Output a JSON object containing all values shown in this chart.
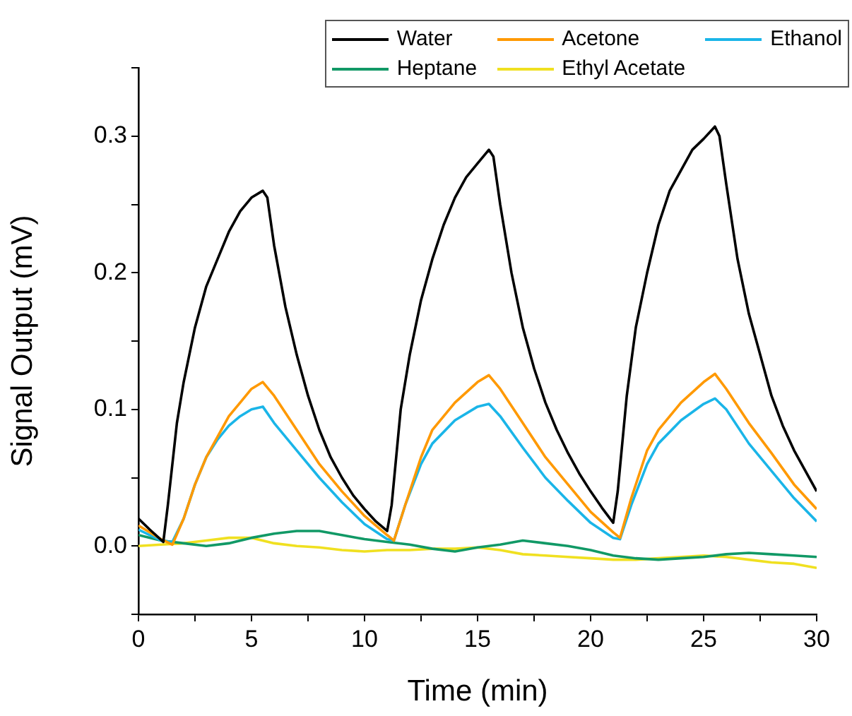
{
  "chart_data": {
    "type": "line",
    "xlabel": "Time (min)",
    "ylabel": "Signal Output (mV)",
    "xlim": [
      0,
      30
    ],
    "ylim": [
      -0.05,
      0.35
    ],
    "xticks": [
      0,
      {
        "value": 2.5,
        "label": null
      },
      5,
      {
        "value": 7.5,
        "label": null
      },
      10,
      {
        "value": 12.5,
        "label": null
      },
      15,
      {
        "value": 17.5,
        "label": null
      },
      20,
      {
        "value": 22.5,
        "label": null
      },
      25,
      {
        "value": 27.5,
        "label": null
      },
      30
    ],
    "yticks": [
      {
        "value": -0.05,
        "label": null
      },
      {
        "value": 0,
        "label": "0.0"
      },
      {
        "value": 0.05,
        "label": null
      },
      {
        "value": 0.1,
        "label": "0.1"
      },
      {
        "value": 0.15,
        "label": null
      },
      {
        "value": 0.2,
        "label": "0.2"
      },
      {
        "value": 0.25,
        "label": null
      },
      {
        "value": 0.3,
        "label": "0.3"
      },
      {
        "value": 0.35,
        "label": null
      }
    ],
    "grid": false,
    "legend": "top right",
    "marker": "none",
    "line_style": "solid",
    "series": [
      {
        "name": "Water",
        "color": "#000000",
        "x": [
          0,
          0.5,
          1.1,
          1.3,
          1.7,
          2,
          2.5,
          3,
          3.5,
          4,
          4.5,
          5,
          5.5,
          5.7,
          6,
          6.5,
          7,
          7.5,
          8,
          8.5,
          9,
          9.5,
          10,
          10.5,
          11,
          11.2,
          11.6,
          12,
          12.5,
          13,
          13.5,
          14,
          14.5,
          15,
          15.5,
          15.7,
          16,
          16.5,
          17,
          17.5,
          18,
          18.5,
          19,
          19.5,
          20,
          20.5,
          21,
          21.2,
          21.6,
          22,
          22.5,
          23,
          23.5,
          24,
          24.5,
          25,
          25.5,
          25.7,
          26,
          26.5,
          27,
          27.5,
          28,
          28.5,
          29,
          29.5,
          30
        ],
        "values": [
          0.02,
          0.012,
          0.003,
          0.03,
          0.09,
          0.12,
          0.16,
          0.19,
          0.21,
          0.23,
          0.245,
          0.255,
          0.26,
          0.255,
          0.22,
          0.175,
          0.14,
          0.11,
          0.085,
          0.065,
          0.05,
          0.037,
          0.027,
          0.018,
          0.011,
          0.03,
          0.1,
          0.14,
          0.18,
          0.21,
          0.235,
          0.255,
          0.27,
          0.28,
          0.29,
          0.285,
          0.25,
          0.2,
          0.16,
          0.13,
          0.105,
          0.085,
          0.068,
          0.053,
          0.04,
          0.028,
          0.017,
          0.04,
          0.11,
          0.16,
          0.2,
          0.235,
          0.26,
          0.275,
          0.29,
          0.298,
          0.307,
          0.3,
          0.265,
          0.21,
          0.17,
          0.14,
          0.11,
          0.088,
          0.07,
          0.055,
          0.04
        ]
      },
      {
        "name": "Acetone",
        "color": "#ff9900",
        "x": [
          0,
          1,
          1.5,
          2,
          2.5,
          3,
          3.5,
          4,
          4.5,
          5,
          5.5,
          6,
          7,
          8,
          9,
          10,
          11,
          11.3,
          11.8,
          12.5,
          13,
          14,
          15,
          15.5,
          16,
          17,
          18,
          19,
          20,
          21,
          21.3,
          21.8,
          22.5,
          23,
          24,
          25,
          25.5,
          26,
          27,
          28,
          29,
          30
        ],
        "values": [
          0.015,
          0.005,
          0.001,
          0.02,
          0.045,
          0.065,
          0.08,
          0.095,
          0.105,
          0.115,
          0.12,
          0.11,
          0.085,
          0.06,
          0.04,
          0.022,
          0.008,
          0.004,
          0.03,
          0.065,
          0.085,
          0.105,
          0.12,
          0.125,
          0.115,
          0.09,
          0.065,
          0.045,
          0.025,
          0.01,
          0.006,
          0.035,
          0.07,
          0.085,
          0.105,
          0.12,
          0.126,
          0.115,
          0.09,
          0.068,
          0.045,
          0.027
        ]
      },
      {
        "name": "Ethanol",
        "color": "#1ab5e8",
        "x": [
          0,
          1,
          1.5,
          2,
          2.5,
          3,
          3.5,
          4,
          4.5,
          5,
          5.5,
          6,
          7,
          8,
          9,
          10,
          11,
          11.3,
          11.8,
          12.5,
          13,
          14,
          15,
          15.5,
          16,
          17,
          18,
          19,
          20,
          21,
          21.3,
          21.8,
          22.5,
          23,
          24,
          25,
          25.5,
          26,
          27,
          28,
          29,
          30
        ],
        "values": [
          0.012,
          0.004,
          0.003,
          0.02,
          0.045,
          0.065,
          0.078,
          0.088,
          0.095,
          0.1,
          0.102,
          0.09,
          0.07,
          0.05,
          0.032,
          0.016,
          0.005,
          0.004,
          0.03,
          0.06,
          0.075,
          0.092,
          0.102,
          0.104,
          0.095,
          0.072,
          0.05,
          0.033,
          0.017,
          0.006,
          0.005,
          0.03,
          0.06,
          0.075,
          0.092,
          0.104,
          0.108,
          0.1,
          0.075,
          0.055,
          0.035,
          0.018
        ]
      },
      {
        "name": "Heptane",
        "color": "#119966",
        "x": [
          0,
          1,
          2,
          3,
          4,
          5,
          6,
          7,
          8,
          9,
          10,
          11,
          12,
          13,
          14,
          15,
          16,
          17,
          18,
          19,
          20,
          21,
          22,
          23,
          24,
          25,
          26,
          27,
          28,
          29,
          30
        ],
        "values": [
          0.008,
          0.004,
          0.002,
          0.0,
          0.002,
          0.006,
          0.009,
          0.011,
          0.011,
          0.008,
          0.005,
          0.003,
          0.001,
          -0.002,
          -0.004,
          -0.001,
          0.001,
          0.004,
          0.002,
          0.0,
          -0.003,
          -0.007,
          -0.009,
          -0.01,
          -0.009,
          -0.008,
          -0.006,
          -0.005,
          -0.006,
          -0.007,
          -0.008
        ]
      },
      {
        "name": "Ethyl Acetate",
        "color": "#f0e020",
        "x": [
          0,
          1,
          2,
          3,
          4,
          5,
          6,
          7,
          8,
          9,
          10,
          11,
          12,
          13,
          14,
          15,
          16,
          17,
          18,
          19,
          20,
          21,
          22,
          23,
          24,
          25,
          26,
          27,
          28,
          29,
          30
        ],
        "values": [
          0.0,
          0.001,
          0.002,
          0.004,
          0.006,
          0.006,
          0.002,
          0.0,
          -0.001,
          -0.003,
          -0.004,
          -0.003,
          -0.003,
          -0.002,
          -0.002,
          -0.001,
          -0.003,
          -0.006,
          -0.007,
          -0.008,
          -0.009,
          -0.01,
          -0.01,
          -0.009,
          -0.008,
          -0.007,
          -0.008,
          -0.01,
          -0.012,
          -0.013,
          -0.016
        ]
      }
    ]
  }
}
